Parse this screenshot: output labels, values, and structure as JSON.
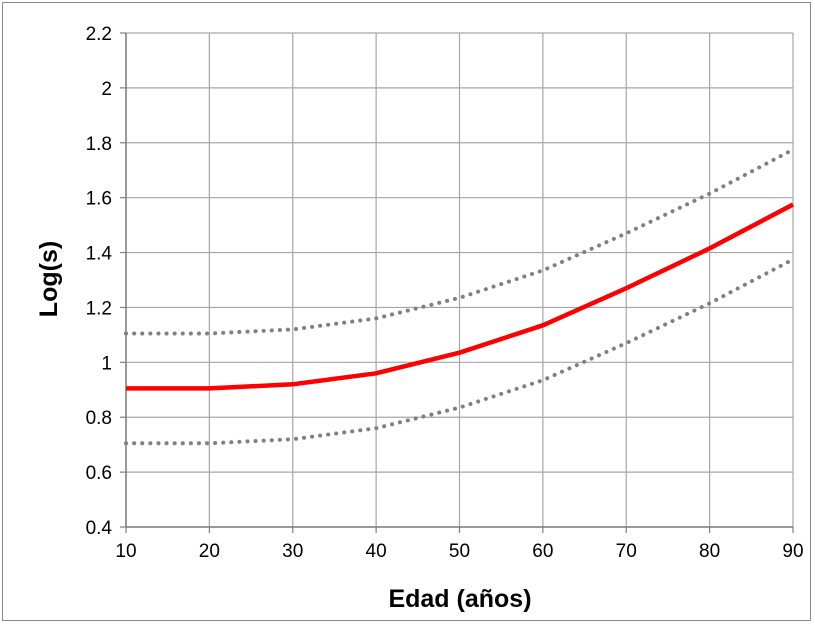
{
  "chart_data": {
    "type": "line",
    "xlabel": "Edad (años)",
    "ylabel": "Log(s)",
    "xlim": [
      10,
      90
    ],
    "ylim": [
      0.4,
      2.2
    ],
    "x_ticks": [
      "10",
      "20",
      "30",
      "40",
      "50",
      "60",
      "70",
      "80",
      "90"
    ],
    "y_ticks": [
      "0.4",
      "0.6",
      "0.8",
      "1",
      "1.2",
      "1.4",
      "1.6",
      "1.8",
      "2",
      "2.2"
    ],
    "x": [
      10,
      20,
      30,
      40,
      50,
      60,
      70,
      80,
      90
    ],
    "series": [
      {
        "color": "#ff0000",
        "style": "solid",
        "values": [
          0.905,
          0.905,
          0.92,
          0.96,
          1.035,
          1.135,
          1.27,
          1.415,
          1.575
        ]
      },
      {
        "color": "#808080",
        "style": "dotted",
        "values": [
          1.105,
          1.105,
          1.12,
          1.16,
          1.235,
          1.335,
          1.47,
          1.615,
          1.775
        ]
      },
      {
        "color": "#808080",
        "style": "dotted",
        "values": [
          0.705,
          0.705,
          0.72,
          0.76,
          0.835,
          0.935,
          1.07,
          1.215,
          1.375
        ]
      }
    ],
    "grid": true,
    "legend": "none"
  }
}
